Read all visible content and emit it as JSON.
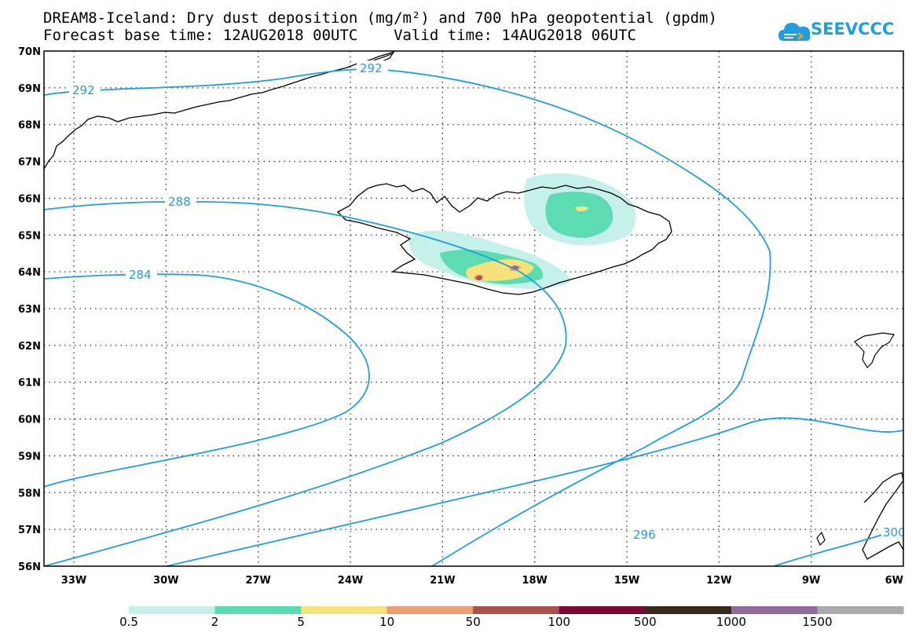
{
  "title": {
    "line1": "DREAM8-Iceland: Dry dust deposition (mg/m²) and 700 hPa geopotential (gpdm)",
    "line2": "Forecast base time: 12AUG2018 00UTC    Valid time: 14AUG2018 06UTC"
  },
  "logo": {
    "text": "SEEVCCC",
    "icon": "cloud-icon",
    "color": "#1d9fe0"
  },
  "map": {
    "lat_labels": [
      "70N",
      "69N",
      "68N",
      "67N",
      "66N",
      "65N",
      "64N",
      "63N",
      "62N",
      "61N",
      "60N",
      "59N",
      "58N",
      "57N",
      "56N"
    ],
    "lon_labels": [
      "33W",
      "30W",
      "27W",
      "24W",
      "21W",
      "18W",
      "15W",
      "12W",
      "9W",
      "6W"
    ],
    "contour_labels": [
      "292",
      "292",
      "288",
      "284",
      "296",
      "300"
    ],
    "contour_color": "#1d9fe0",
    "coastline_color": "#000000"
  },
  "legend": {
    "labels": [
      "0.5",
      "2",
      "5",
      "10",
      "50",
      "100",
      "500",
      "1000",
      "1500"
    ],
    "colors": [
      "#c6f0ea",
      "#5ddcb4",
      "#f5e27a",
      "#ee9c72",
      "#aa5249",
      "#7a0830",
      "#3a2a1e",
      "#8f6a9b",
      "#ababab"
    ]
  }
}
